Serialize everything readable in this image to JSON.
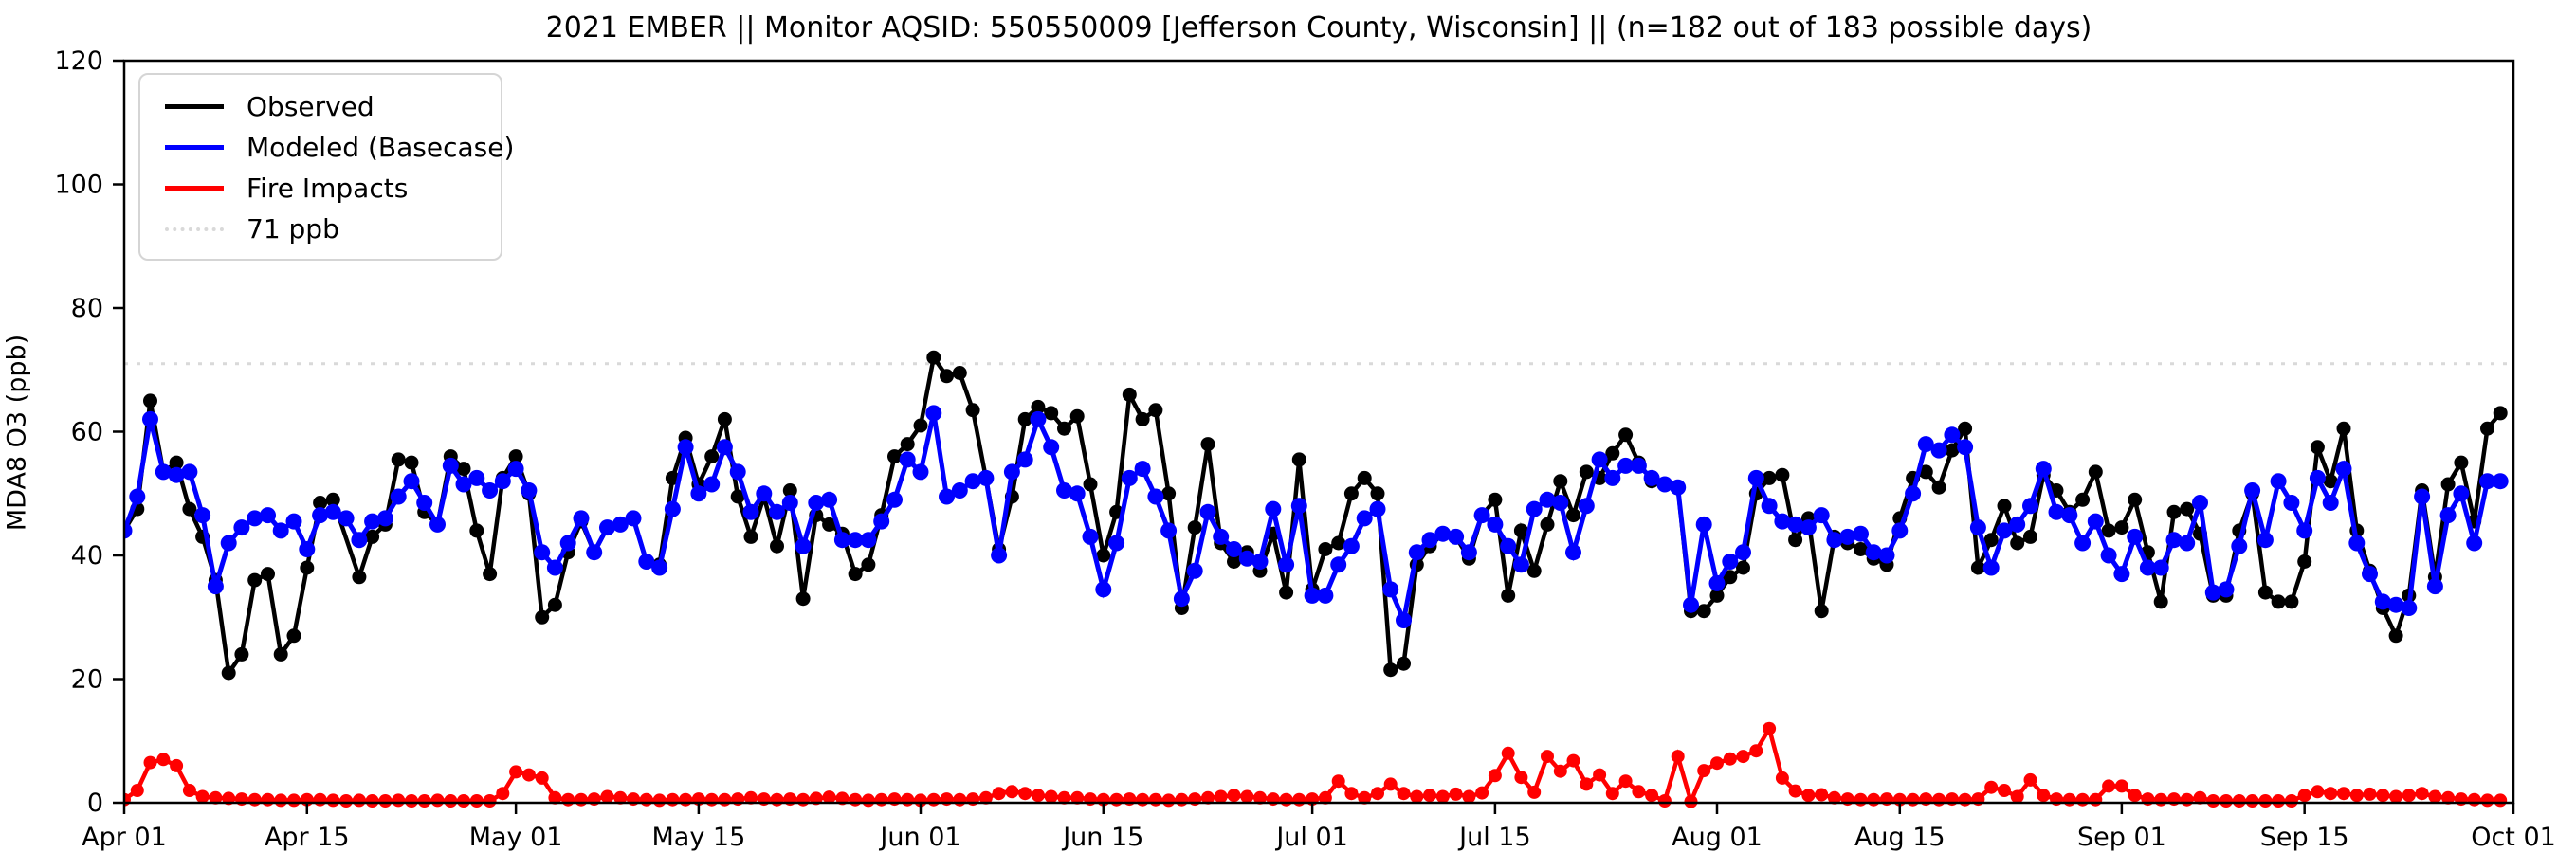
{
  "title": "2021 EMBER || Monitor AQSID: 550550009 [Jefferson County, Wisconsin] || (n=182 out of 183 possible days)",
  "y_axis_label": "MDA8 O3 (ppb)",
  "legend": [
    {
      "label": "Observed",
      "color": "#000000",
      "style": "solid"
    },
    {
      "label": "Modeled (Basecase)",
      "color": "#0000ff",
      "style": "solid"
    },
    {
      "label": "Fire Impacts",
      "color": "#ff0000",
      "style": "solid"
    },
    {
      "label": "71 ppb",
      "color": "#d9d9d9",
      "style": "dotted"
    }
  ],
  "chart_data": {
    "type": "line",
    "title": "2021 EMBER || Monitor AQSID: 550550009 [Jefferson County, Wisconsin] || (n=182 out of 183 possible days)",
    "xlabel": "",
    "ylabel": "MDA8 O3 (ppb)",
    "ylim": [
      0,
      120
    ],
    "yticks": [
      0,
      20,
      40,
      60,
      80,
      100,
      120
    ],
    "x_start_date": "Apr 01",
    "x_end_date": "Sep 30",
    "x_total_days": 183,
    "xticks": [
      {
        "day": 0,
        "label": "Apr 01"
      },
      {
        "day": 14,
        "label": "Apr 15"
      },
      {
        "day": 30,
        "label": "May 01"
      },
      {
        "day": 44,
        "label": "May 15"
      },
      {
        "day": 61,
        "label": "Jun 01"
      },
      {
        "day": 75,
        "label": "Jun 15"
      },
      {
        "day": 91,
        "label": "Jul 01"
      },
      {
        "day": 105,
        "label": "Jul 15"
      },
      {
        "day": 122,
        "label": "Aug 01"
      },
      {
        "day": 136,
        "label": "Aug 15"
      },
      {
        "day": 153,
        "label": "Sep 01"
      },
      {
        "day": 167,
        "label": "Sep 15"
      },
      {
        "day": 183,
        "label": "Oct 01"
      }
    ],
    "threshold_line": {
      "value": 71,
      "label": "71 ppb",
      "color": "#d9d9d9",
      "style": "dotted"
    },
    "grid": false,
    "legend_position": "upper left",
    "series": [
      {
        "name": "Observed",
        "color": "#000000",
        "marker": "circle",
        "note": "one missing day (Apr 18), n=182",
        "values": [
          44,
          47.5,
          65,
          53.5,
          55,
          47.5,
          43,
          36,
          21,
          24,
          36,
          37,
          24,
          27,
          38,
          48.5,
          49,
          null,
          36.5,
          43,
          45,
          55.5,
          55,
          47,
          45,
          56,
          54,
          44,
          37,
          52.5,
          56,
          50,
          30,
          32,
          40.5,
          45.5,
          40.5,
          44.5,
          45,
          46,
          39,
          38.5,
          52.5,
          59,
          51.5,
          56,
          62,
          49.5,
          43,
          49.5,
          41.5,
          50.5,
          33,
          46.5,
          45,
          43.5,
          37,
          38.5,
          46.5,
          56,
          58,
          61,
          72,
          69,
          69.5,
          63.5,
          52.5,
          41,
          49.5,
          62,
          64,
          63,
          60.5,
          62.5,
          51.5,
          40,
          47,
          66,
          62,
          63.5,
          50,
          31.5,
          44.5,
          58,
          42,
          39,
          40.5,
          37.5,
          43.5,
          34,
          55.5,
          34.5,
          41,
          42,
          50,
          52.5,
          50,
          21.5,
          22.5,
          38.5,
          41.5,
          43.5,
          43,
          39.5,
          46.5,
          49,
          33.5,
          44,
          37.5,
          45,
          52,
          46.5,
          53.5,
          52.5,
          56.5,
          59.5,
          55,
          52,
          51.5,
          51,
          31,
          31,
          33.5,
          36.5,
          38,
          50,
          52.5,
          53,
          42.5,
          46,
          31,
          43,
          42,
          41,
          39.5,
          38.5,
          46,
          52.5,
          53.5,
          51,
          57,
          60.5,
          38,
          42.5,
          48,
          42,
          43,
          53,
          50.5,
          47,
          49,
          53.5,
          44,
          44.5,
          49,
          40.5,
          32.5,
          47,
          47.5,
          43.5,
          33.5,
          33.5,
          44,
          50,
          34,
          32.5,
          32.5,
          39,
          57.5,
          52,
          60.5,
          44,
          37.5,
          31.5,
          27,
          33.5,
          50.5,
          36.5,
          51.5,
          55,
          45.5,
          60.5,
          63
        ]
      },
      {
        "name": "Modeled (Basecase)",
        "color": "#0000ff",
        "marker": "circle",
        "values": [
          44,
          49.5,
          62,
          53.5,
          53,
          53.5,
          46.5,
          35,
          42,
          44.5,
          46,
          46.5,
          44,
          45.5,
          41,
          46.5,
          47,
          46,
          42.5,
          45.5,
          46,
          49.5,
          52,
          48.5,
          45,
          54.5,
          51.5,
          52.5,
          50.5,
          52,
          54,
          50.5,
          40.5,
          38,
          42,
          46,
          40.5,
          44.5,
          45,
          46,
          39,
          38,
          47.5,
          57.5,
          50,
          51.5,
          57.5,
          53.5,
          47,
          50,
          47,
          48.5,
          41.5,
          48.5,
          49,
          42.5,
          42.5,
          42.5,
          45.5,
          49,
          55.5,
          53.5,
          63,
          49.5,
          50.5,
          52,
          52.5,
          40,
          53.5,
          55.5,
          62,
          57.5,
          50.5,
          50,
          43,
          34.5,
          42,
          52.5,
          54,
          49.5,
          44,
          33,
          37.5,
          47,
          43,
          41,
          39.5,
          39,
          47.5,
          38.5,
          48,
          33.5,
          33.5,
          38.5,
          41.5,
          46,
          47.5,
          34.5,
          29.5,
          40.5,
          42.5,
          43.5,
          43,
          40.5,
          46.5,
          45,
          41.5,
          38.5,
          47.5,
          49,
          48.5,
          40.5,
          48,
          55.5,
          52.5,
          54.5,
          54.5,
          52.5,
          51.5,
          51,
          32,
          45,
          35.5,
          39,
          40.5,
          52.5,
          48,
          45.5,
          45,
          44.5,
          46.5,
          42.5,
          43,
          43.5,
          40.5,
          40,
          44,
          50,
          58,
          57,
          59.5,
          57.5,
          44.5,
          38,
          44,
          45,
          48,
          54,
          47,
          46.5,
          42,
          45.5,
          40,
          37,
          43,
          38,
          38,
          42.5,
          42,
          48.5,
          34,
          34.5,
          41.5,
          50.5,
          42.5,
          52,
          48.5,
          44,
          52.5,
          48.5,
          54,
          42,
          37,
          32.5,
          32,
          31.5,
          49.5,
          35,
          46.5,
          50,
          42,
          52,
          52
        ]
      },
      {
        "name": "Fire Impacts",
        "color": "#ff0000",
        "marker": "circle",
        "values": [
          0.5,
          2,
          6.5,
          7,
          6,
          2,
          1,
          0.8,
          0.7,
          0.6,
          0.5,
          0.5,
          0.4,
          0.4,
          0.5,
          0.5,
          0.4,
          0.3,
          0.4,
          0.3,
          0.3,
          0.4,
          0.3,
          0.3,
          0.4,
          0.3,
          0.3,
          0.3,
          0.3,
          1.5,
          5,
          4.5,
          4,
          0.8,
          0.5,
          0.5,
          0.6,
          1,
          0.8,
          0.6,
          0.5,
          0.4,
          0.5,
          0.5,
          0.6,
          0.5,
          0.5,
          0.6,
          0.8,
          0.6,
          0.5,
          0.6,
          0.5,
          0.7,
          0.9,
          0.7,
          0.5,
          0.4,
          0.5,
          0.6,
          0.5,
          0.4,
          0.5,
          0.6,
          0.5,
          0.6,
          0.8,
          1.5,
          1.8,
          1.5,
          1.2,
          1,
          0.8,
          0.8,
          0.6,
          0.5,
          0.5,
          0.6,
          0.5,
          0.5,
          0.4,
          0.5,
          0.6,
          0.8,
          1,
          1.2,
          1,
          0.8,
          0.6,
          0.5,
          0.5,
          0.6,
          0.8,
          3.5,
          1.5,
          0.8,
          1.5,
          3,
          1.5,
          1,
          1.2,
          1,
          1.4,
          1,
          1.6,
          4.4,
          8,
          4.1,
          1.7,
          7.5,
          5.1,
          6.8,
          3,
          4.5,
          1.5,
          3.5,
          1.8,
          1.2,
          0.3,
          7.5,
          0.2,
          5.2,
          6.4,
          7.1,
          7.5,
          8.4,
          12,
          4,
          1.9,
          1.2,
          1.3,
          0.8,
          0.6,
          0.5,
          0.5,
          0.6,
          0.5,
          0.5,
          0.6,
          0.5,
          0.6,
          0.5,
          0.6,
          2.5,
          2,
          1,
          3.7,
          1.2,
          0.6,
          0.5,
          0.5,
          0.5,
          2.7,
          2.7,
          1.2,
          0.6,
          0.5,
          0.6,
          0.5,
          0.8,
          0.3,
          0.3,
          0.3,
          0.3,
          0.3,
          0.3,
          0.3,
          1.2,
          1.8,
          1.5,
          1.5,
          1.2,
          1.4,
          1.2,
          1,
          1.2,
          1.5,
          1,
          0.8,
          0.6,
          0.5,
          0.4,
          0.4
        ]
      }
    ]
  }
}
